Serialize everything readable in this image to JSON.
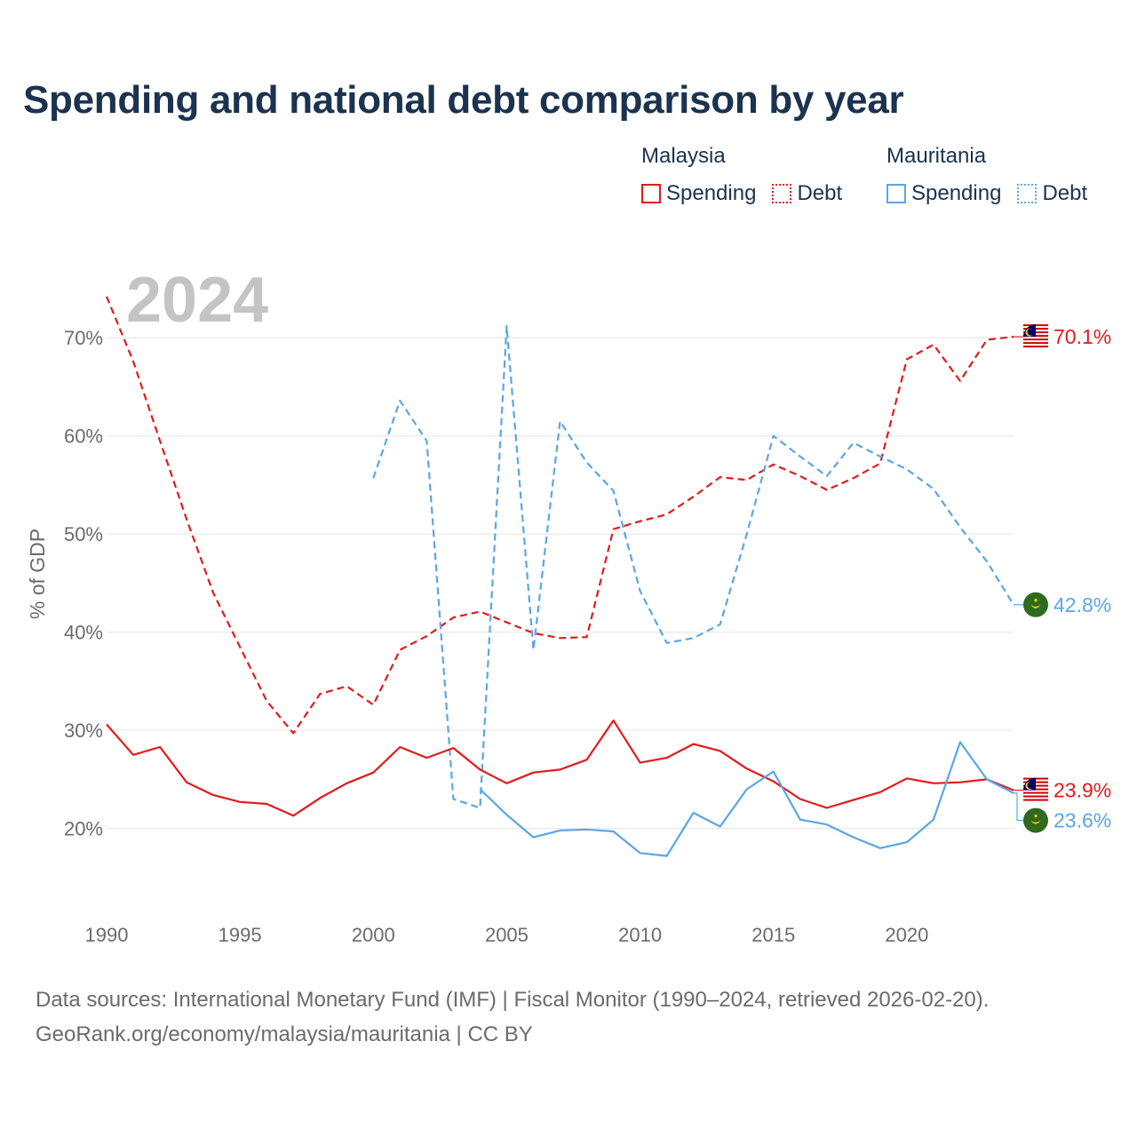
{
  "title": "Spending and national debt comparison by year",
  "legend": {
    "malaysia": {
      "name": "Malaysia",
      "spending": "Spending",
      "debt": "Debt"
    },
    "mauritania": {
      "name": "Mauritania",
      "spending": "Spending",
      "debt": "Debt"
    }
  },
  "footer": {
    "line1": "Data sources: International Monetary Fund (IMF) | Fiscal Monitor (1990–2024, retrieved 2026-02-20).",
    "line2": "GeoRank.org/economy/malaysia/mauritania | CC BY"
  },
  "colors": {
    "malaysia": "#e41a1c",
    "mauritania": "#5aa6e6",
    "title": "#1b3350"
  },
  "chart_data": {
    "type": "line",
    "year_label": "2024",
    "ylabel": "% of GDP",
    "xlim": [
      1990,
      2024
    ],
    "ylim": [
      13,
      75
    ],
    "xticks": [
      1990,
      1995,
      2000,
      2005,
      2010,
      2015,
      2020
    ],
    "yticks": [
      20,
      30,
      40,
      50,
      60,
      70
    ],
    "ytick_labels": [
      "20%",
      "30%",
      "40%",
      "50%",
      "60%",
      "70%"
    ],
    "series": [
      {
        "name": "Malaysia Debt",
        "country": "malaysia",
        "style": "dashed",
        "x": [
          1990,
          1991,
          1992,
          1993,
          1994,
          1995,
          1996,
          1997,
          1998,
          1999,
          2000,
          2001,
          2002,
          2003,
          2004,
          2005,
          2006,
          2007,
          2008,
          2009,
          2010,
          2011,
          2012,
          2013,
          2014,
          2015,
          2016,
          2017,
          2018,
          2019,
          2020,
          2021,
          2022,
          2023,
          2024
        ],
        "values": [
          74.2,
          67.6,
          59.5,
          51.5,
          44,
          38.5,
          33,
          29.7,
          33.7,
          34.5,
          32.6,
          38.2,
          39.6,
          41.5,
          42.1,
          41,
          39.9,
          39.4,
          39.5,
          50.5,
          51.3,
          52,
          53.8,
          55.8,
          55.5,
          57.1,
          55.9,
          54.5,
          55.7,
          57.2,
          67.8,
          69.3,
          65.6,
          69.8,
          70.1
        ],
        "end_label": "70.1%"
      },
      {
        "name": "Mauritania Debt",
        "country": "mauritania",
        "style": "dashed",
        "x": [
          2000,
          2001,
          2002,
          2003,
          2004,
          2005,
          2006,
          2007,
          2008,
          2009,
          2010,
          2011,
          2012,
          2013,
          2014,
          2015,
          2016,
          2017,
          2018,
          2019,
          2020,
          2021,
          2022,
          2023,
          2024
        ],
        "values": [
          55.7,
          63.6,
          59.5,
          23,
          22.1,
          71.2,
          38.2,
          61.5,
          57.3,
          54.4,
          44.2,
          38.9,
          39.4,
          40.8,
          50,
          60,
          57.9,
          55.9,
          59.3,
          57.9,
          56.6,
          54.6,
          50.7,
          47.2,
          42.8
        ],
        "end_label": "42.8%"
      },
      {
        "name": "Malaysia Spending",
        "country": "malaysia",
        "style": "solid",
        "x": [
          1990,
          1991,
          1992,
          1993,
          1994,
          1995,
          1996,
          1997,
          1998,
          1999,
          2000,
          2001,
          2002,
          2003,
          2004,
          2005,
          2006,
          2007,
          2008,
          2009,
          2010,
          2011,
          2012,
          2013,
          2014,
          2015,
          2016,
          2017,
          2018,
          2019,
          2020,
          2021,
          2022,
          2023,
          2024
        ],
        "values": [
          30.6,
          27.5,
          28.3,
          24.7,
          23.4,
          22.7,
          22.5,
          21.3,
          23.1,
          24.6,
          25.7,
          28.3,
          27.2,
          28.2,
          26,
          24.6,
          25.7,
          26,
          27,
          31,
          26.7,
          27.2,
          28.6,
          27.9,
          26.1,
          24.8,
          23,
          22.1,
          22.9,
          23.7,
          25.1,
          24.6,
          24.7,
          25,
          23.9
        ],
        "end_label": "23.9%"
      },
      {
        "name": "Mauritania Spending",
        "country": "mauritania",
        "style": "solid",
        "x": [
          2004,
          2005,
          2006,
          2007,
          2008,
          2009,
          2010,
          2011,
          2012,
          2013,
          2014,
          2015,
          2016,
          2017,
          2018,
          2019,
          2020,
          2021,
          2022,
          2023,
          2024
        ],
        "values": [
          24,
          21.4,
          19.1,
          19.8,
          19.9,
          19.7,
          17.5,
          17.2,
          21.6,
          20.2,
          24,
          25.8,
          20.9,
          20.4,
          19.1,
          18,
          18.6,
          20.9,
          28.8,
          25,
          23.6
        ],
        "end_label": "23.6%"
      }
    ]
  }
}
